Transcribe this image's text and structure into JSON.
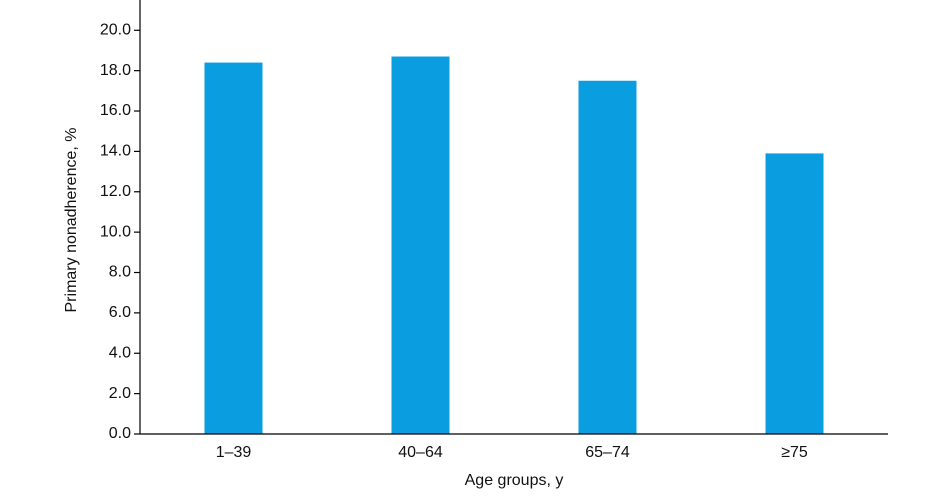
{
  "chart_data": {
    "type": "bar",
    "x_label": "Age groups, y",
    "y_label": "Primary nonadherence, %",
    "categories": [
      "1–39",
      "40–64",
      "65–74",
      "≥75"
    ],
    "values": [
      18.4,
      18.7,
      17.5,
      13.9
    ],
    "color": "#0a9ee0",
    "ylim": [
      0,
      21.5
    ],
    "yticks": [
      {
        "value": 0,
        "label": "0.0"
      },
      {
        "value": 2,
        "label": "2.0"
      },
      {
        "value": 4,
        "label": "4.0"
      },
      {
        "value": 6,
        "label": "6.0"
      },
      {
        "value": 8,
        "label": "8.0"
      },
      {
        "value": 10,
        "label": "10.0"
      },
      {
        "value": 12,
        "label": "12.0"
      },
      {
        "value": 14,
        "label": "14.0"
      },
      {
        "value": 16,
        "label": "16.0"
      },
      {
        "value": 18,
        "label": "18.0"
      },
      {
        "value": 20,
        "label": "20.0"
      }
    ],
    "grid": false
  }
}
